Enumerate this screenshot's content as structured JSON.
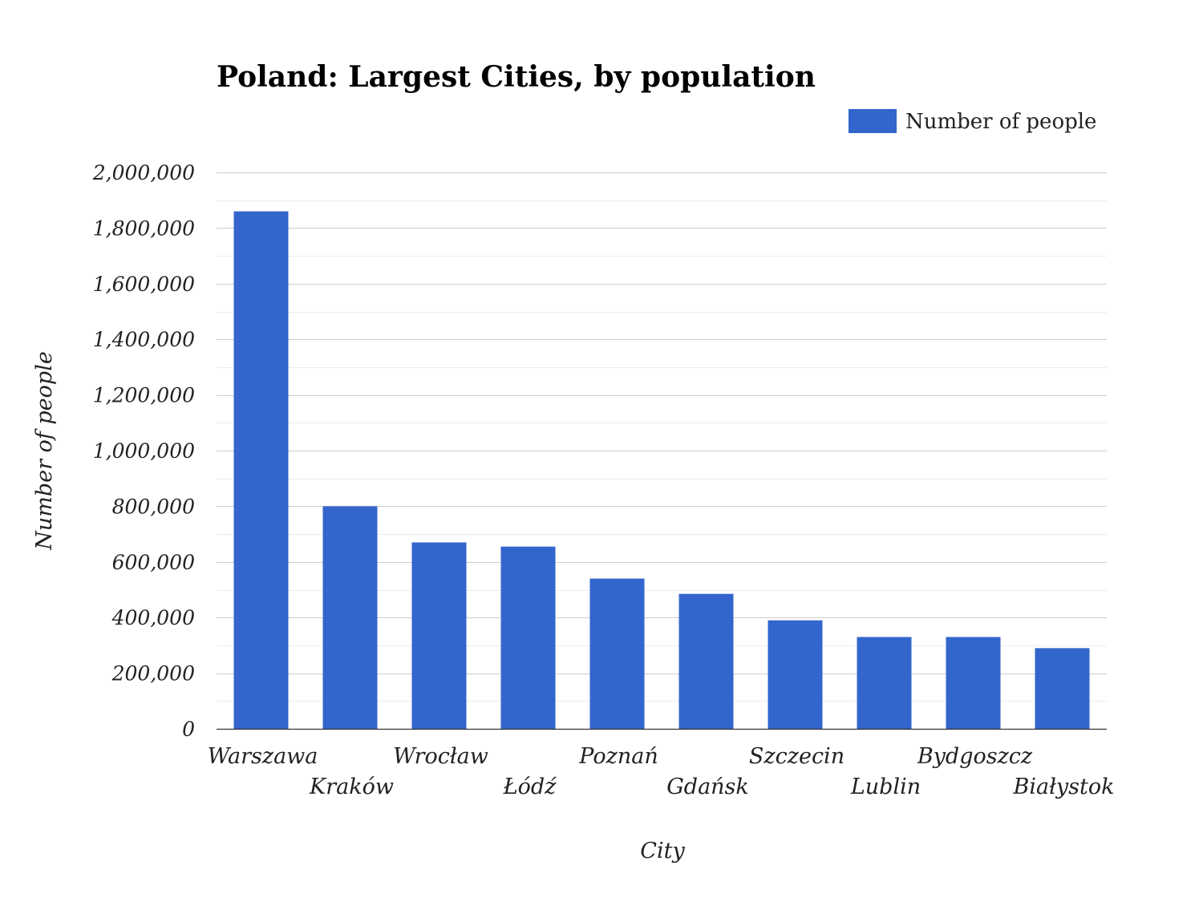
{
  "chart_data": {
    "type": "bar",
    "title": "Poland: Largest Cities, by population",
    "xlabel": "City",
    "ylabel": "Number of people",
    "categories": [
      "Warszawa",
      "Kraków",
      "Wrocław",
      "Łódź",
      "Poznań",
      "Gdańsk",
      "Szczecin",
      "Lublin",
      "Bydgoszcz",
      "Białystok"
    ],
    "series": [
      {
        "name": "Number of people",
        "color": "#3366cc",
        "values": [
          1860000,
          800000,
          670000,
          655000,
          540000,
          485000,
          390000,
          330000,
          330000,
          290000
        ]
      }
    ],
    "ylim": [
      0,
      2000000
    ],
    "yticks": [
      "0",
      "200,000",
      "400,000",
      "600,000",
      "800,000",
      "1,000,000",
      "1,200,000",
      "1,400,000",
      "1,600,000",
      "1,800,000",
      "2,000,000"
    ],
    "grid": true,
    "legend_position": "top-right"
  }
}
